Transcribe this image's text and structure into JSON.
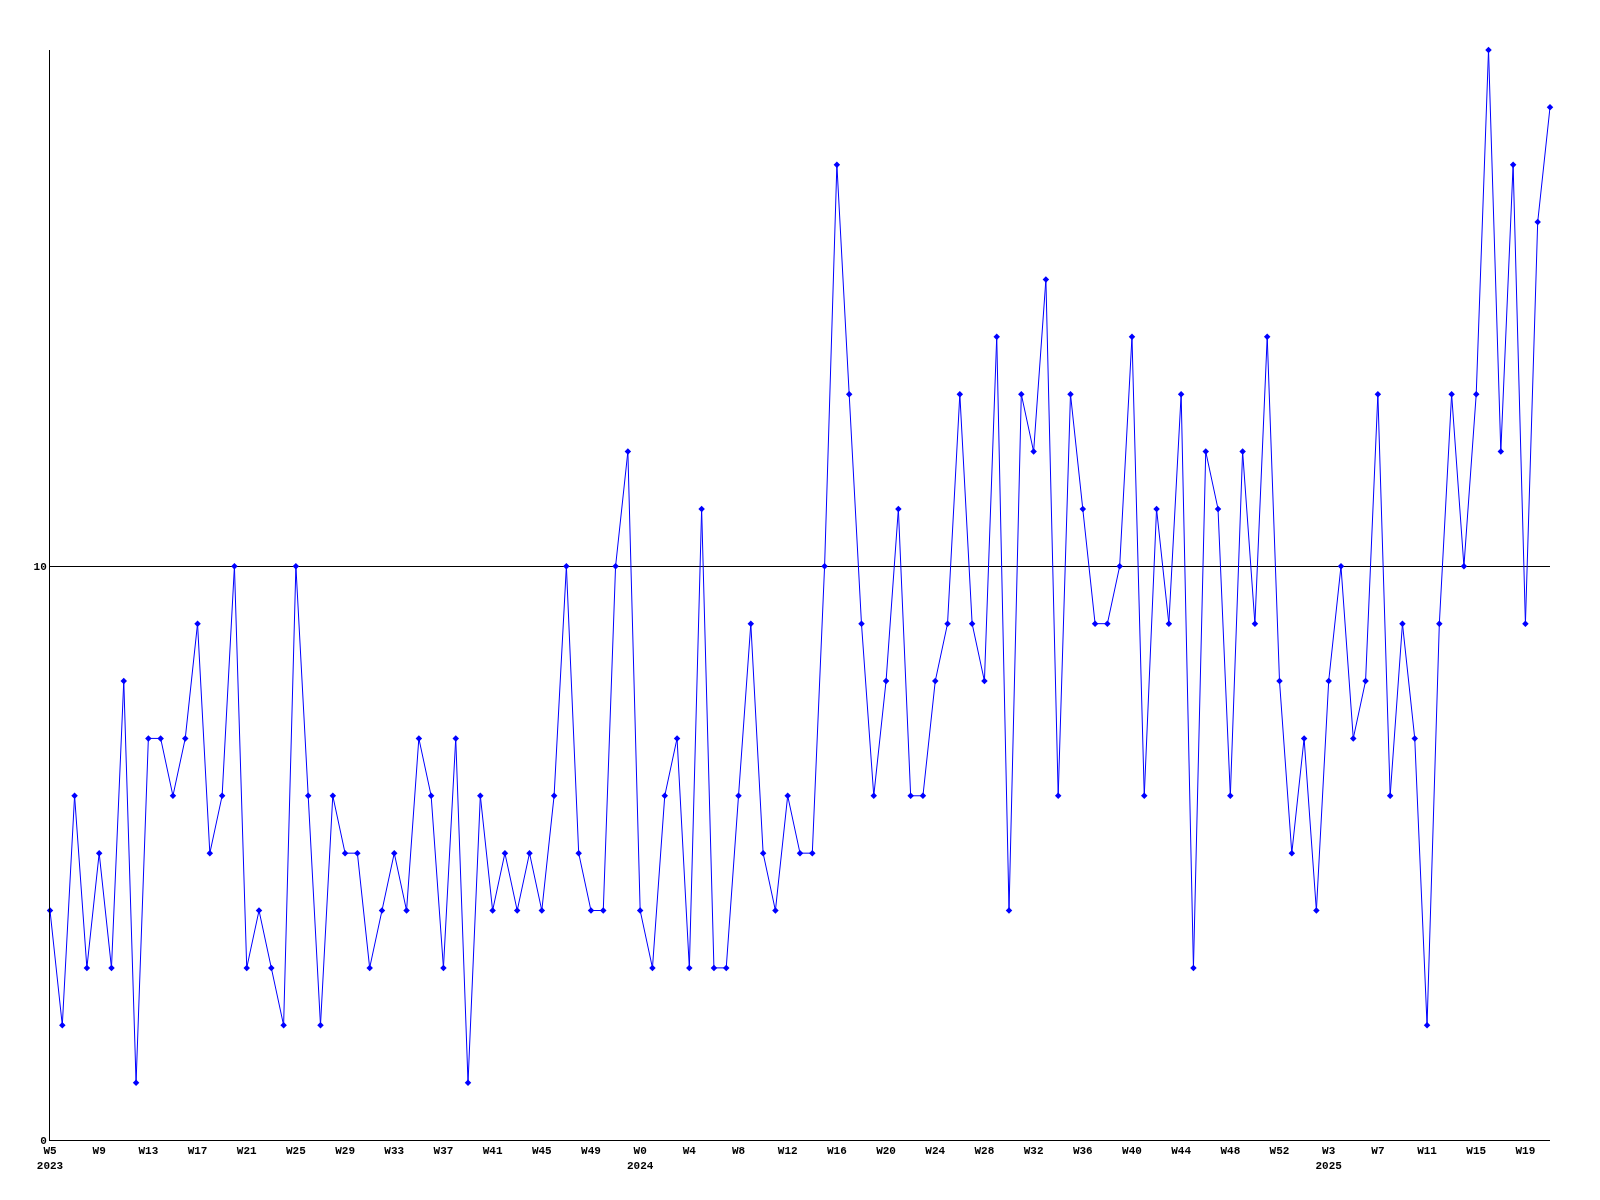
{
  "chart_data": {
    "type": "line",
    "categories": [
      "W5\n2023",
      null,
      null,
      null,
      "W9",
      null,
      null,
      null,
      "W13",
      null,
      null,
      null,
      "W17",
      null,
      null,
      null,
      "W21",
      null,
      null,
      null,
      "W25",
      null,
      null,
      null,
      "W29",
      null,
      null,
      null,
      "W33",
      null,
      null,
      null,
      "W37",
      null,
      null,
      null,
      "W41",
      null,
      null,
      null,
      "W45",
      null,
      null,
      null,
      "W49",
      null,
      null,
      null,
      "W0\n2024",
      null,
      null,
      null,
      "W4",
      null,
      null,
      null,
      "W8",
      null,
      null,
      null,
      "W12",
      null,
      null,
      null,
      "W16",
      null,
      null,
      null,
      "W20",
      null,
      null,
      null,
      "W24",
      null,
      null,
      null,
      "W28",
      null,
      null,
      null,
      "W32",
      null,
      null,
      null,
      "W36",
      null,
      null,
      null,
      "W40",
      null,
      null,
      null,
      "W44",
      null,
      null,
      null,
      "W48",
      null,
      null,
      null,
      "W52",
      null,
      null,
      null,
      "W3\n2025",
      null,
      null,
      null,
      "W7",
      null,
      null,
      null,
      "W11",
      null,
      null,
      null,
      "W15",
      null,
      null,
      null,
      "W19",
      null,
      null
    ],
    "series": [
      {
        "color": "#0000ff",
        "values": [
          4,
          2,
          6,
          3,
          5,
          3,
          8,
          1,
          7,
          7,
          6,
          7,
          9,
          5,
          6,
          10,
          3,
          4,
          3,
          2,
          10,
          6,
          2,
          6,
          5,
          5,
          3,
          4,
          5,
          4,
          7,
          6,
          3,
          7,
          1,
          6,
          4,
          5,
          4,
          5,
          4,
          6,
          10,
          5,
          4,
          4,
          10,
          12,
          4,
          3,
          6,
          7,
          3,
          11,
          3,
          3,
          6,
          9,
          5,
          4,
          6,
          5,
          5,
          10,
          17,
          13,
          9,
          6,
          8,
          11,
          6,
          6,
          8,
          9,
          13,
          9,
          8,
          14,
          4,
          13,
          12,
          15,
          6,
          13,
          11,
          9,
          9,
          10,
          14,
          6,
          11,
          9,
          13,
          3,
          12,
          11,
          6,
          12,
          9,
          14,
          8,
          5,
          7,
          4,
          8,
          10,
          7,
          8,
          13,
          6,
          9,
          7,
          2,
          9,
          13,
          10,
          13,
          19,
          12,
          17,
          9,
          16,
          18
        ]
      }
    ],
    "ylim": [
      0,
      19
    ],
    "yticks": [
      0,
      10
    ],
    "grid": "y",
    "marker": "diamond",
    "line_style": "solid"
  }
}
